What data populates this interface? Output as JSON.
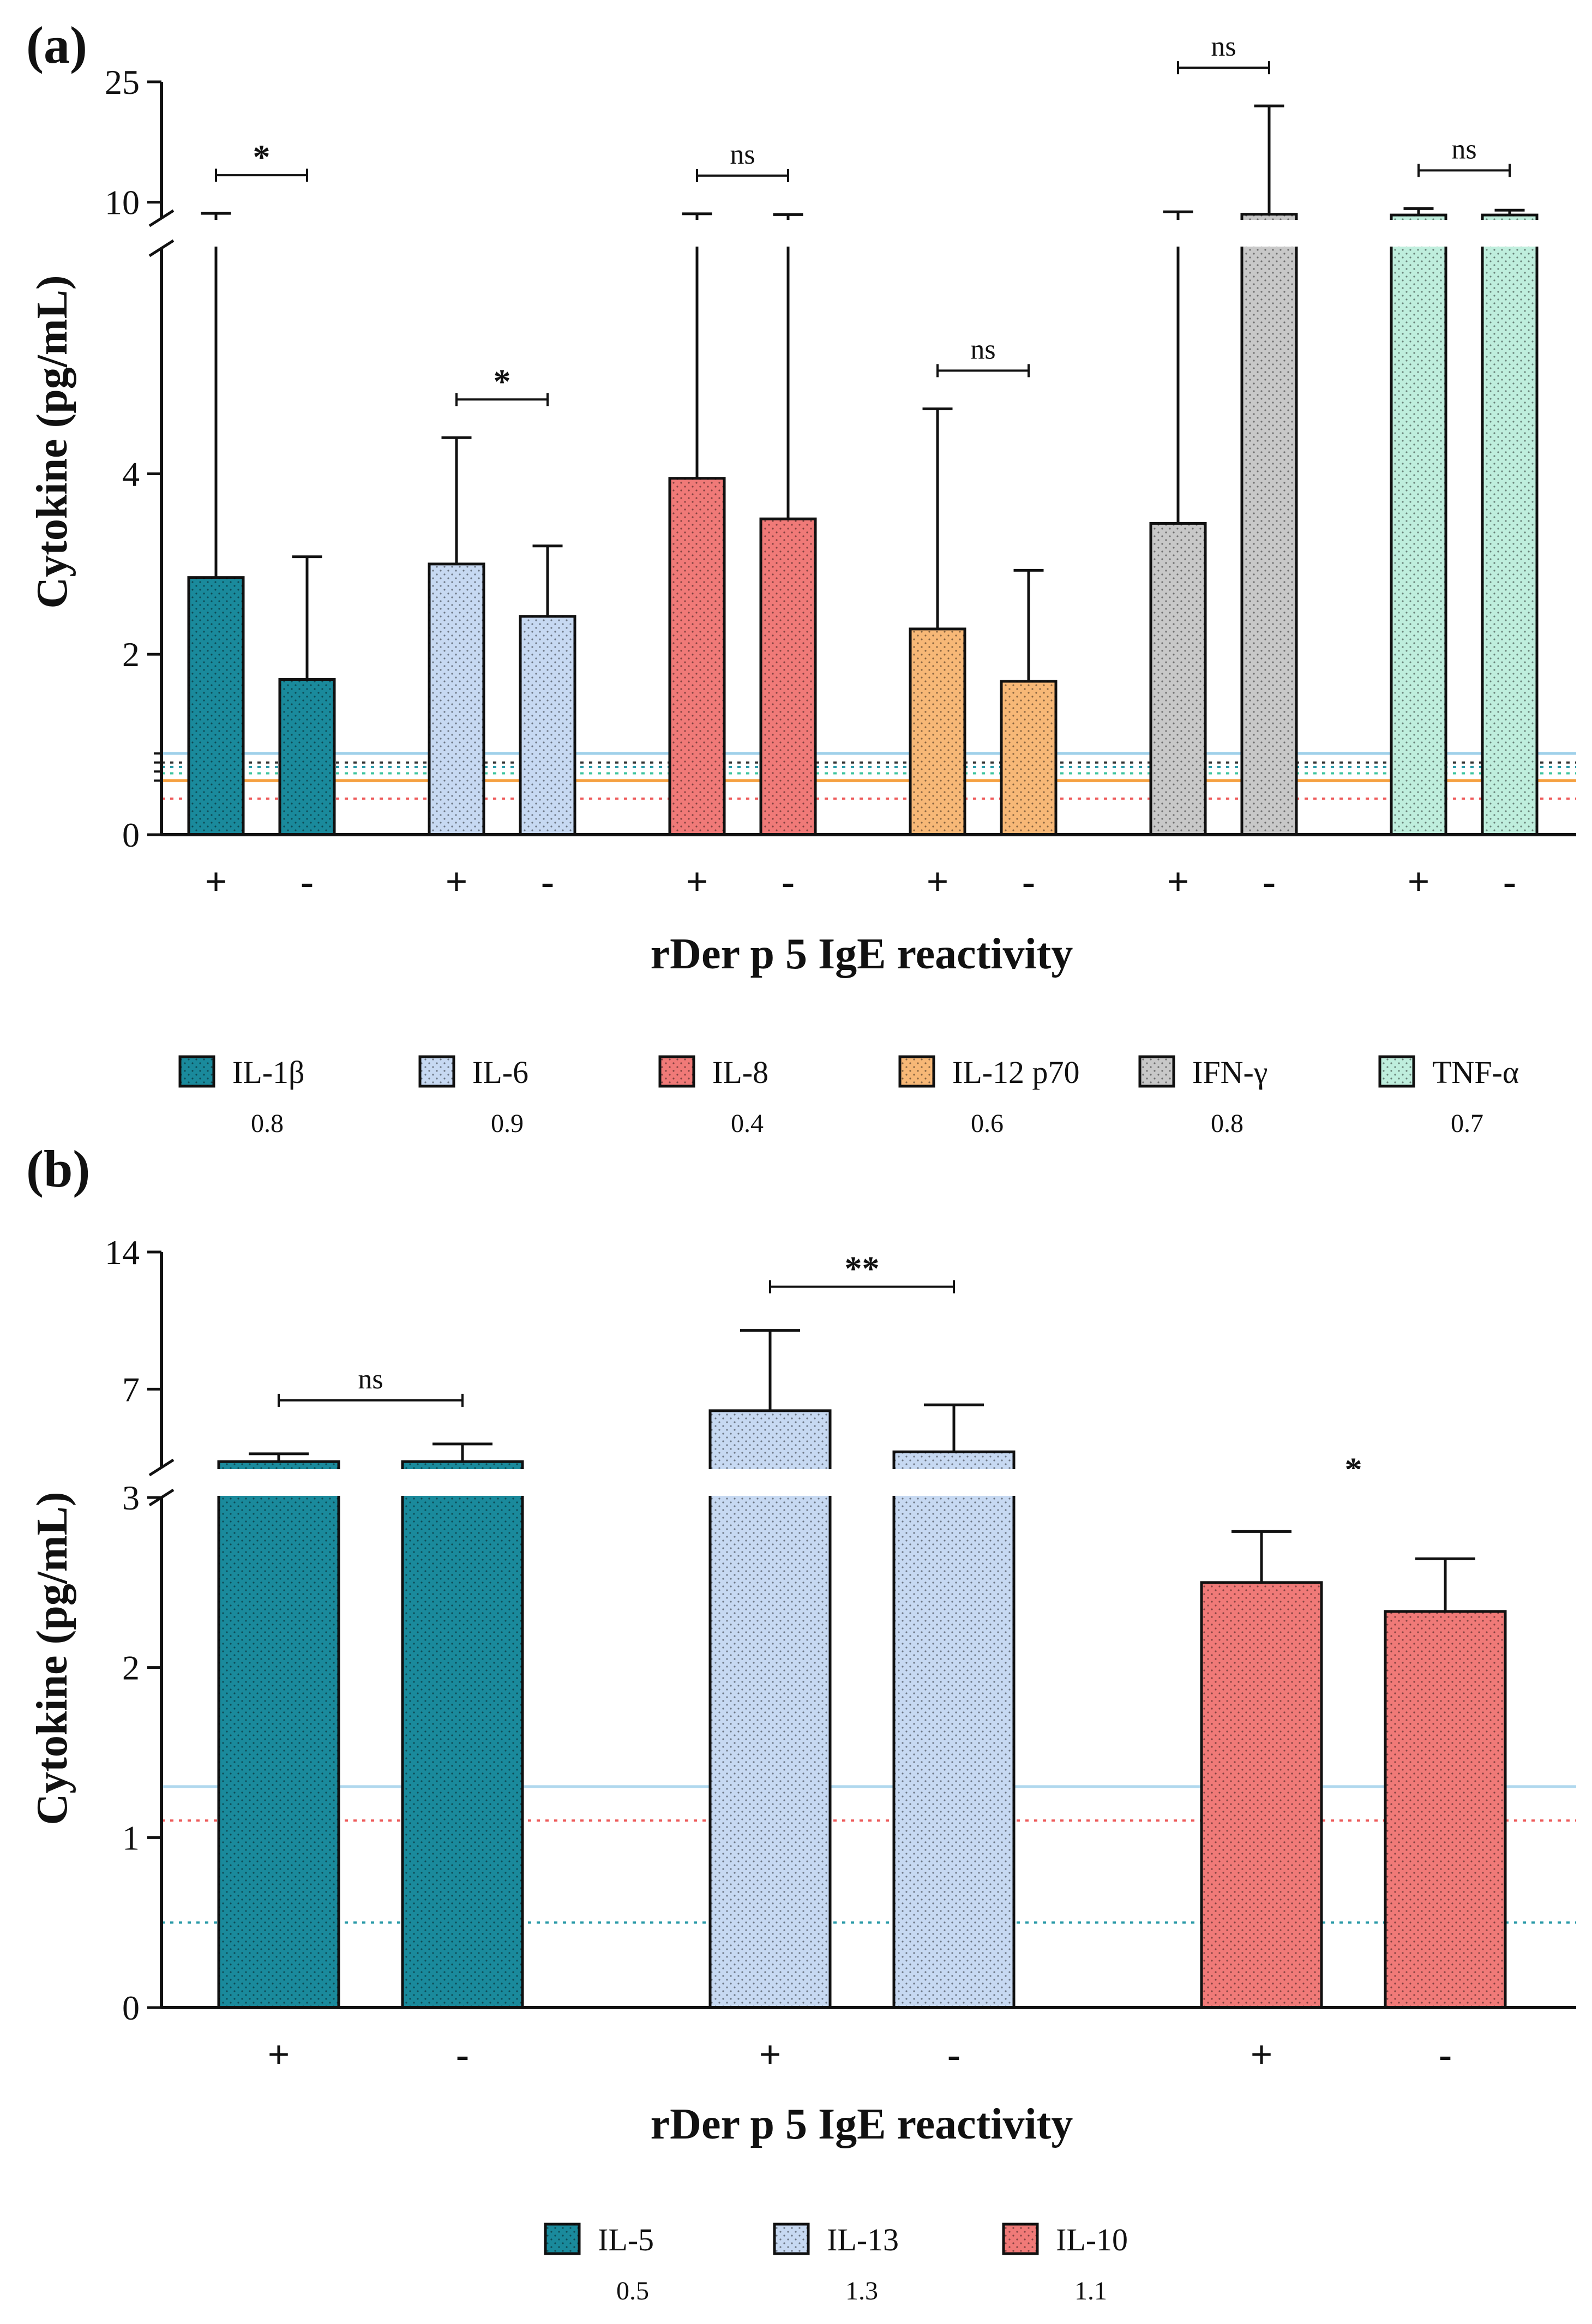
{
  "chart_data": [
    {
      "panel": "(a)",
      "type": "bar",
      "title": "",
      "ylabel": "Cytokine (pg/mL)",
      "xlabel": "rDer p 5 IgE reactivity",
      "axis_break": {
        "lower_range": [
          0,
          6.5
        ],
        "upper_range": [
          8,
          25
        ]
      },
      "lower_ticks": [
        "0",
        "2",
        "4"
      ],
      "upper_ticks": [
        "10",
        "25"
      ],
      "series": [
        {
          "name": "IL-1β",
          "color": "#1a8a9c",
          "lod": "0.8",
          "lod_value": 0.8,
          "lod_style": "dotted",
          "lod_color": "#333333",
          "bars": [
            {
              "group": "+",
              "value": 2.85,
              "error_top": 8.6
            },
            {
              "group": "-",
              "value": 1.72,
              "error_top": 3.08
            }
          ],
          "significance": "*"
        },
        {
          "name": "IL-6",
          "color": "#c7d9f2",
          "lod": "0.9",
          "lod_value": 0.9,
          "lod_style": "solid",
          "lod_color": "#9fd0ea",
          "bars": [
            {
              "group": "+",
              "value": 3.0,
              "error_top": 4.4
            },
            {
              "group": "-",
              "value": 2.42,
              "error_top": 3.2
            }
          ],
          "significance": "*"
        },
        {
          "name": "IL-8",
          "color": "#f07a78",
          "lod": "0.4",
          "lod_value": 0.4,
          "lod_style": "dotted",
          "lod_color": "#ee5a5a",
          "bars": [
            {
              "group": "+",
              "value": 3.95,
              "error_top": 8.55
            },
            {
              "group": "-",
              "value": 3.5,
              "error_top": 8.45
            }
          ],
          "significance": "ns"
        },
        {
          "name": "IL-12 p70",
          "color": "#f7b877",
          "lod": "0.6",
          "lod_value": 0.6,
          "lod_style": "solid",
          "lod_color": "#f5a040",
          "bars": [
            {
              "group": "+",
              "value": 2.28,
              "error_top": 4.72
            },
            {
              "group": "-",
              "value": 1.7,
              "error_top": 2.93
            }
          ],
          "significance": "ns"
        },
        {
          "name": "IFN-γ",
          "color": "#c8c8c8",
          "lod": "0.8",
          "lod_value": 0.75,
          "lod_style": "dotted",
          "lod_color": "#2a9aa8",
          "bars": [
            {
              "group": "+",
              "value": 3.45,
              "error_top": 8.8
            },
            {
              "group": "-",
              "value": 8.5,
              "error_top": 22.0
            }
          ],
          "significance": "ns"
        },
        {
          "name": "TNF-α",
          "color": "#bfeedd",
          "lod": "0.7",
          "lod_value": 0.68,
          "lod_style": "dotted",
          "lod_color": "#40c4a0",
          "bars": [
            {
              "group": "+",
              "value": 8.4,
              "error_top": 9.2
            },
            {
              "group": "-",
              "value": 8.4,
              "error_top": 9.0
            }
          ],
          "significance": "ns"
        }
      ]
    },
    {
      "panel": "(b)",
      "type": "bar",
      "title": "",
      "ylabel": "Cytokine (pg/mL)",
      "xlabel": "rDer p 5 IgE reactivity",
      "axis_break": {
        "lower_range": [
          0,
          3
        ],
        "upper_range": [
          3,
          14
        ]
      },
      "lower_ticks": [
        "0",
        "1",
        "2",
        "3"
      ],
      "upper_ticks": [
        "7",
        "14"
      ],
      "series": [
        {
          "name": "IL-5",
          "color": "#1a8a9c",
          "lod": "0.5",
          "lod_value": 0.5,
          "lod_style": "dotted",
          "lod_color": "#2a9aa8",
          "bars": [
            {
              "group": "+",
              "value": 3.3,
              "error_top": 3.7
            },
            {
              "group": "-",
              "value": 3.3,
              "error_top": 4.2
            }
          ],
          "significance": "ns"
        },
        {
          "name": "IL-13",
          "color": "#c7d9f2",
          "lod": "1.3",
          "lod_value": 1.3,
          "lod_style": "solid",
          "lod_color": "#b0d8ee",
          "bars": [
            {
              "group": "+",
              "value": 5.9,
              "error_top": 10.0
            },
            {
              "group": "-",
              "value": 3.8,
              "error_top": 6.2
            }
          ],
          "significance": "**"
        },
        {
          "name": "IL-10",
          "color": "#f07a78",
          "lod": "1.1",
          "lod_value": 1.1,
          "lod_style": "dotted",
          "lod_color": "#ee5a5a",
          "bars": [
            {
              "group": "+",
              "value": 2.5,
              "error_top": 2.8
            },
            {
              "group": "-",
              "value": 2.33,
              "error_top": 2.64
            }
          ],
          "significance": "*"
        }
      ]
    }
  ]
}
